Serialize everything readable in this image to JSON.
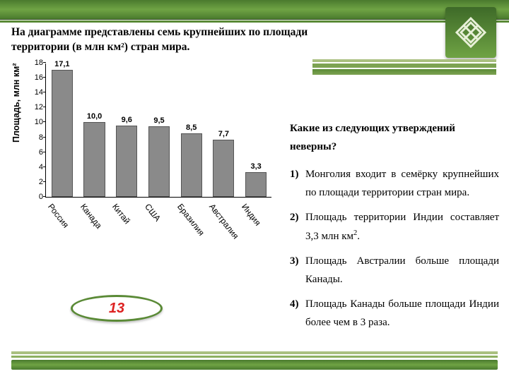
{
  "colors": {
    "green_dark": "#4a7a2e",
    "green_mid": "#6fa344",
    "green_light": "#aac080",
    "bar_fill": "#8a8a8a",
    "bar_border": "#555555",
    "answer_red": "#d22222",
    "text": "#000000"
  },
  "title": "На диаграмме представлены семь крупнейших по площади территории (в млн км²) стран мира.",
  "chart": {
    "type": "bar",
    "yaxis_title": "Площадь, млн км²",
    "ylim": [
      0,
      18
    ],
    "ytick_step": 2,
    "yticks": [
      0,
      2,
      4,
      6,
      8,
      10,
      12,
      14,
      16,
      18
    ],
    "bar_width_ratio": 0.66,
    "bar_fill": "#8a8a8a",
    "bar_border": "#555555",
    "label_fontsize": 11,
    "axis_fontsize": 11,
    "categories": [
      "Россия",
      "Канада",
      "Китай",
      "США",
      "Бразилия",
      "Австралия",
      "Индия"
    ],
    "values": [
      17.1,
      10.0,
      9.6,
      9.5,
      8.5,
      7.7,
      3.3
    ],
    "value_labels": [
      "17,1",
      "10,0",
      "9,6",
      "9,5",
      "8,5",
      "7,7",
      "3,3"
    ]
  },
  "question": {
    "prompt_pre": "Какие из следующих утверждений ",
    "prompt_emph": "неверны",
    "prompt_post": "?",
    "items": [
      "Монголия входит в семёрку крупнейших по площади территории стран мира.",
      "Площадь территории Индии составляет 3,3 млн км².",
      "Площадь Австралии больше площади Канады.",
      "Площадь Канады больше площади Индии более чем в 3 раза."
    ]
  },
  "answer": "13"
}
